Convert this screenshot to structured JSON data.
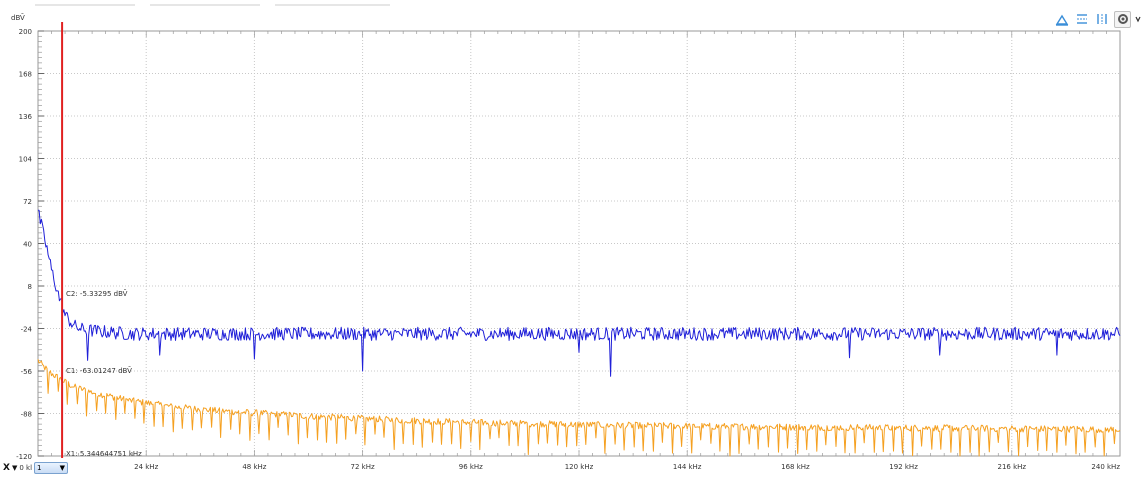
{
  "window": {
    "toolbar_icons": [
      "zoom-fit-icon",
      "horizontal-ruler-icon",
      "vertical-ruler-icon",
      "settings-icon",
      "more-icon"
    ]
  },
  "x_control": {
    "axis_button": "X",
    "dropdown_arrow": "▼",
    "zero_label": "0 kl",
    "channel_value": "1"
  },
  "colors": {
    "cursor": "#e02020",
    "c1": "#f5a020",
    "c2": "#2020d8",
    "grid": "#c8c8c8"
  },
  "annotations": {
    "c2": "C2: -5.33295 dBV̄",
    "c1": "C1: -63.01247 dBV̄",
    "x1": "X1: 5.344644751 kHz"
  },
  "chart_data": {
    "type": "line",
    "y_unit": "dBV̄",
    "ylim": [
      -120,
      200
    ],
    "y_ticks": [
      200,
      168,
      136,
      104,
      72,
      40,
      8,
      -24,
      -56,
      -88,
      -120
    ],
    "xlim": [
      0,
      240
    ],
    "x_ticks": [
      24,
      48,
      72,
      96,
      120,
      144,
      168,
      192,
      216,
      240
    ],
    "x_tick_labels": [
      "24 kHz",
      "48 kHz",
      "72 kHz",
      "96 kHz",
      "120 kHz",
      "144 kHz",
      "168 kHz",
      "192 kHz",
      "216 kHz",
      "240 kHz"
    ],
    "grid": true,
    "cursor_x": 5.344644751,
    "series": [
      {
        "key": "c2",
        "color": "#2020d8",
        "x": [
          0,
          1,
          2,
          3,
          4,
          5,
          5.3,
          6,
          8,
          10,
          20,
          40,
          60,
          80,
          100,
          120,
          140,
          160,
          180,
          200,
          220,
          240
        ],
        "y": [
          64,
          50,
          36,
          20,
          8,
          -4,
          -5.3,
          -14,
          -22,
          -25,
          -28,
          -28,
          -28,
          -28,
          -28,
          -28,
          -28,
          -28,
          -28,
          -28,
          -28,
          -28
        ],
        "noise_amplitude": 5,
        "dips": [
          [
            11,
            -48
          ],
          [
            27,
            -44
          ],
          [
            48,
            -47
          ],
          [
            72,
            -56
          ],
          [
            120,
            -42
          ],
          [
            127,
            -60
          ],
          [
            180,
            -46
          ],
          [
            200,
            -44
          ],
          [
            226,
            -44
          ]
        ]
      },
      {
        "key": "c1",
        "color": "#f5a020",
        "x": [
          0,
          1,
          2,
          3,
          5,
          5.3,
          8,
          12,
          20,
          30,
          40,
          60,
          80,
          100,
          130,
          160,
          200,
          240
        ],
        "y": [
          -48,
          -52,
          -55,
          -58,
          -62,
          -63,
          -68,
          -72,
          -78,
          -83,
          -86,
          -90,
          -93,
          -95,
          -97,
          -98,
          -99,
          -100
        ],
        "noise_amplitude": 2.5,
        "spike_spacing": 2.13,
        "spike_depth": 18
      }
    ]
  }
}
